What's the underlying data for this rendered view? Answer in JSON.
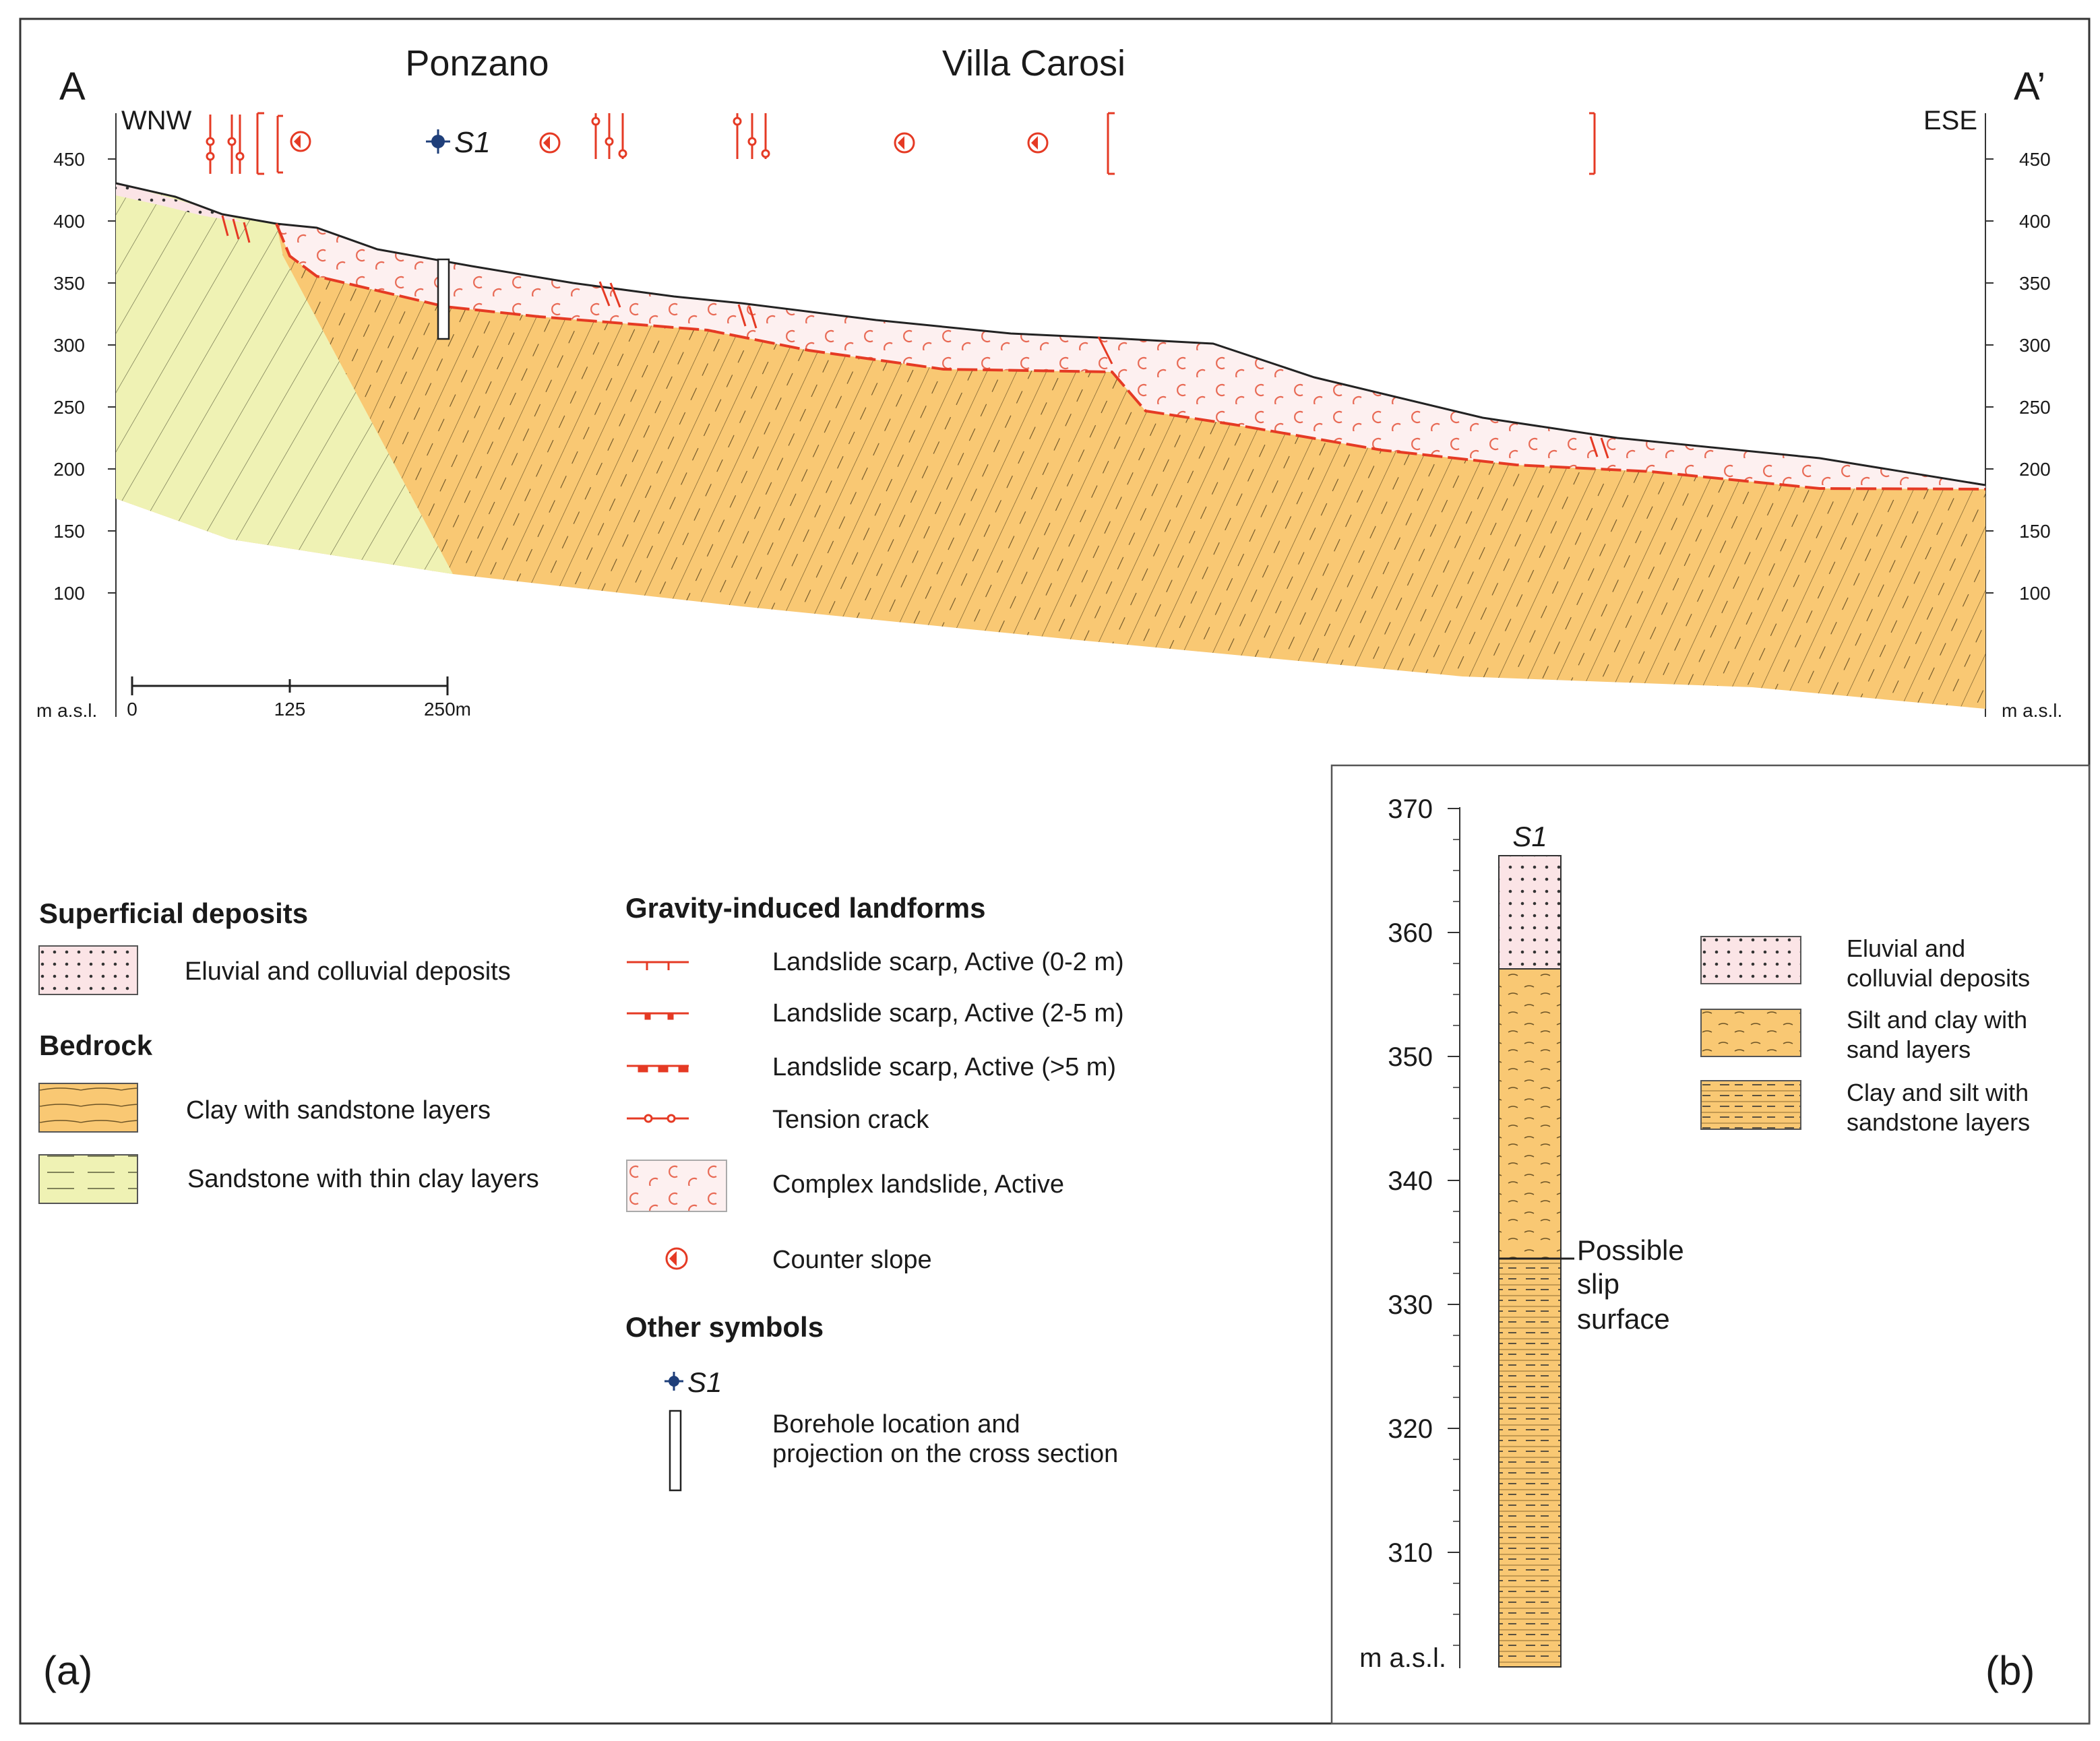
{
  "panel_a": {
    "label": "(a)",
    "endpoint_left": "A",
    "endpoint_right": "A’",
    "dir_left": "WNW",
    "dir_right": "ESE",
    "places": [
      "Ponzano",
      "Villa Carosi"
    ],
    "borehole_tag": "S1",
    "elev_ticks": [
      "450",
      "400",
      "350",
      "300",
      "250",
      "200",
      "150",
      "100"
    ],
    "units_label": "m a.s.l.",
    "scale_bar": [
      "0",
      "125",
      "250m"
    ]
  },
  "legend": {
    "superficial_title": "Superficial deposits",
    "eluvial": "Eluvial and colluvial deposits",
    "bedrock_title": "Bedrock",
    "clay_sandstone": "Clay with sandstone layers",
    "sandstone_clay": "Sandstone with thin clay layers",
    "gravity_title": "Gravity-induced landforms",
    "scarp_0_2": "Landslide scarp, Active (0-2 m)",
    "scarp_2_5": "Landslide scarp, Active (2-5 m)",
    "scarp_5": "Landslide scarp, Active (>5 m)",
    "tension_crack": "Tension crack",
    "complex_landslide": "Complex landslide, Active",
    "counter_slope": "Counter slope",
    "other_title": "Other symbols",
    "borehole_tag": "S1",
    "borehole_line1": "Borehole location and",
    "borehole_line2": "projection on the cross section"
  },
  "panel_b": {
    "label": "(b)",
    "log_title": "S1",
    "elev_ticks": [
      "370",
      "360",
      "350",
      "340",
      "330",
      "320",
      "310"
    ],
    "units_label": "m a.s.l.",
    "slip_line1": "Possible",
    "slip_line2": "slip",
    "slip_line3": "surface",
    "legend_eluvial_1": "Eluvial and",
    "legend_eluvial_2": "colluvial deposits",
    "legend_silt_1": "Silt and clay with",
    "legend_silt_2": "sand layers",
    "legend_clay_1": "Clay and silt with",
    "legend_clay_2": "sandstone layers"
  },
  "colors": {
    "clay_orange": "#f9c873",
    "sandstone_yellow": "#eff2b4",
    "eluvial_pink": "#fbe4e6",
    "landslide_pink": "#fdeeee",
    "red": "#e53a24",
    "navy": "#1f3f7a"
  }
}
